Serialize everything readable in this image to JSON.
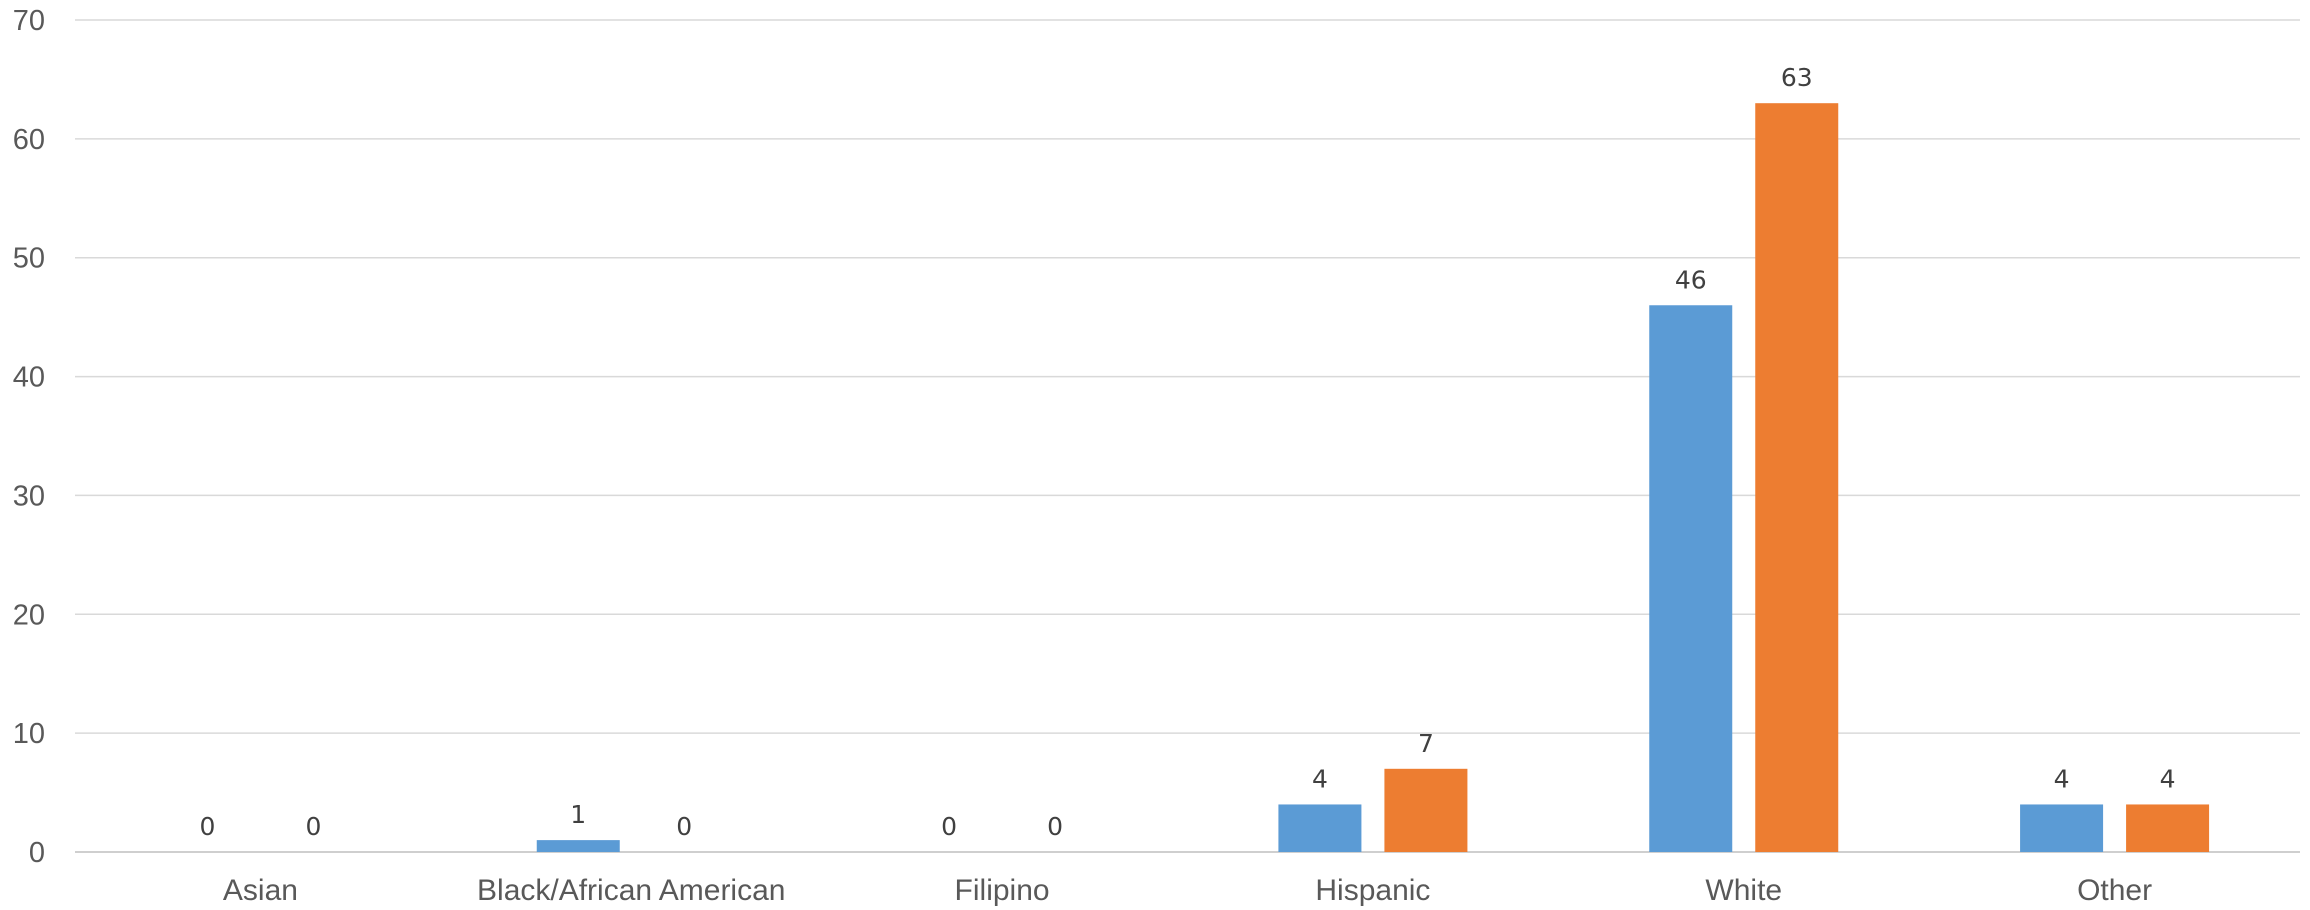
{
  "chart_data": {
    "type": "bar",
    "title": "",
    "xlabel": "",
    "ylabel": "",
    "categories": [
      "Asian",
      "Black/African American",
      "Filipino",
      "Hispanic",
      "White",
      "Other"
    ],
    "series": [
      {
        "color": "#5b9bd5",
        "values": [
          0,
          1,
          0,
          4,
          46,
          4
        ]
      },
      {
        "color": "#ed7d31",
        "values": [
          0,
          0,
          0,
          7,
          63,
          4
        ]
      }
    ],
    "ylim": [
      0,
      70
    ],
    "yticks": [
      0,
      10,
      20,
      30,
      40,
      50,
      60,
      70
    ],
    "grid": true,
    "data_labels": true
  }
}
